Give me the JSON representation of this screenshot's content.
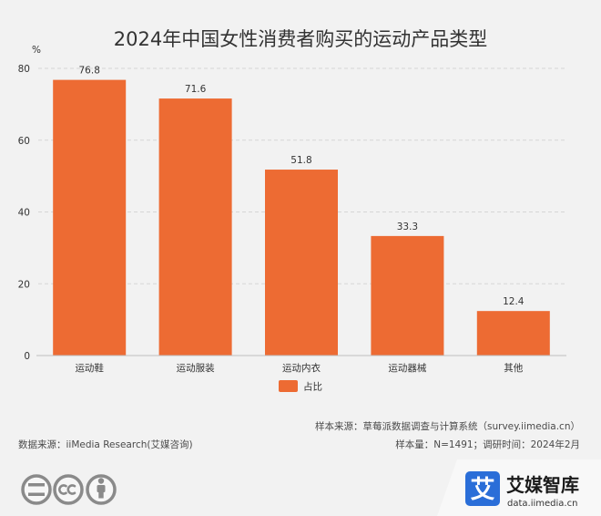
{
  "colors": {
    "background": "#f2f2f2",
    "bar": "#ed6b33",
    "brand": "#2a6ed8",
    "brand_panel": "#f8f8f8"
  },
  "chart_data": {
    "type": "bar",
    "title": "2024年中国女性消费者购买的运动产品类型",
    "ylabel": "%",
    "categories": [
      "运动鞋",
      "运动服装",
      "运动内衣",
      "运动器械",
      "其他"
    ],
    "series": [
      {
        "name": "占比",
        "values": [
          76.8,
          71.6,
          51.8,
          33.3,
          12.4
        ]
      }
    ],
    "ylim": [
      0,
      80
    ],
    "yticks": [
      0,
      20,
      40,
      60,
      80
    ],
    "grid": true,
    "data_labels": true,
    "legend": "bottom"
  },
  "footer": {
    "sample_source": "样本来源：草莓派数据调查与计算系统（survey.iimedia.cn）",
    "data_source": "数据来源：iiMedia Research(艾媒咨询)",
    "sample_info": "样本量：N=1491；调研时间：2024年2月"
  },
  "license_icons": [
    "cc-equals-icon",
    "cc-icon",
    "cc-attribution-icon"
  ],
  "brand": {
    "mark": "艾",
    "name": "艾媒智库",
    "url": "data.iimedia.cn"
  }
}
